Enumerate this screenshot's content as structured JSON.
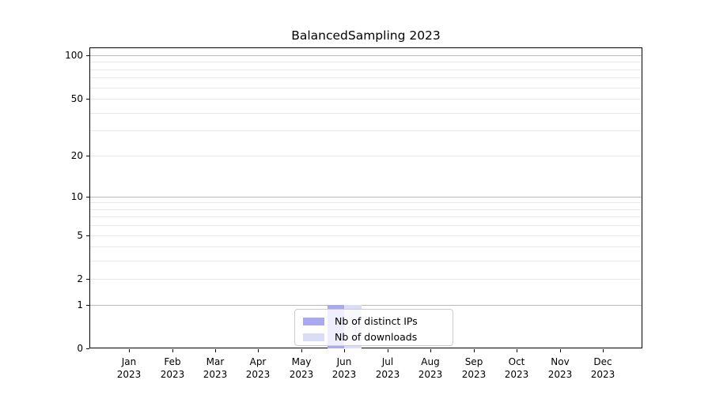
{
  "title": "BalancedSampling 2023",
  "chart_data": {
    "type": "bar",
    "title": "BalancedSampling 2023",
    "categories": [
      "Jan 2023",
      "Feb 2023",
      "Mar 2023",
      "Apr 2023",
      "May 2023",
      "Jun 2023",
      "Jul 2023",
      "Aug 2023",
      "Sep 2023",
      "Oct 2023",
      "Nov 2023",
      "Dec 2023"
    ],
    "x_tick_labels": [
      [
        "Jan",
        "2023"
      ],
      [
        "Feb",
        "2023"
      ],
      [
        "Mar",
        "2023"
      ],
      [
        "Apr",
        "2023"
      ],
      [
        "May",
        "2023"
      ],
      [
        "Jun",
        "2023"
      ],
      [
        "Jul",
        "2023"
      ],
      [
        "Aug",
        "2023"
      ],
      [
        "Sep",
        "2023"
      ],
      [
        "Oct",
        "2023"
      ],
      [
        "Nov",
        "2023"
      ],
      [
        "Dec",
        "2023"
      ]
    ],
    "series": [
      {
        "name": "Nb of distinct IPs",
        "color": "#a9a9f0",
        "values": [
          0,
          0,
          0,
          0,
          0,
          1,
          0,
          0,
          0,
          0,
          0,
          0
        ]
      },
      {
        "name": "Nb of downloads",
        "color": "#dbdcf5",
        "values": [
          0,
          0,
          0,
          0,
          0,
          1,
          0,
          0,
          0,
          0,
          0,
          0
        ]
      }
    ],
    "xlabel": "",
    "ylabel": "",
    "yscale": "log1p",
    "ylim": [
      0,
      113
    ],
    "y_ticks": [
      100,
      50,
      20,
      10,
      5,
      2,
      1,
      0
    ],
    "y_major_gridlines": [
      100,
      10,
      1
    ],
    "y_minor_gridlines": [
      90,
      80,
      70,
      60,
      50,
      40,
      30,
      20,
      9,
      8,
      7,
      6,
      5,
      4,
      3,
      2
    ],
    "grid": true,
    "legend_position": "lower center"
  },
  "legend": {
    "items": [
      {
        "label": "Nb of distinct IPs",
        "color": "#a9a9f0"
      },
      {
        "label": "Nb of downloads",
        "color": "#dbdcf5"
      }
    ]
  },
  "colors": {
    "background": "#ffffff",
    "spine": "#000000",
    "grid_major": "#b9b9b9",
    "grid_minor": "#e9e9e9",
    "bar_distinct_ips": "#a9a9f0",
    "bar_downloads": "#dbdcf5",
    "legend_border": "#cccccc"
  }
}
